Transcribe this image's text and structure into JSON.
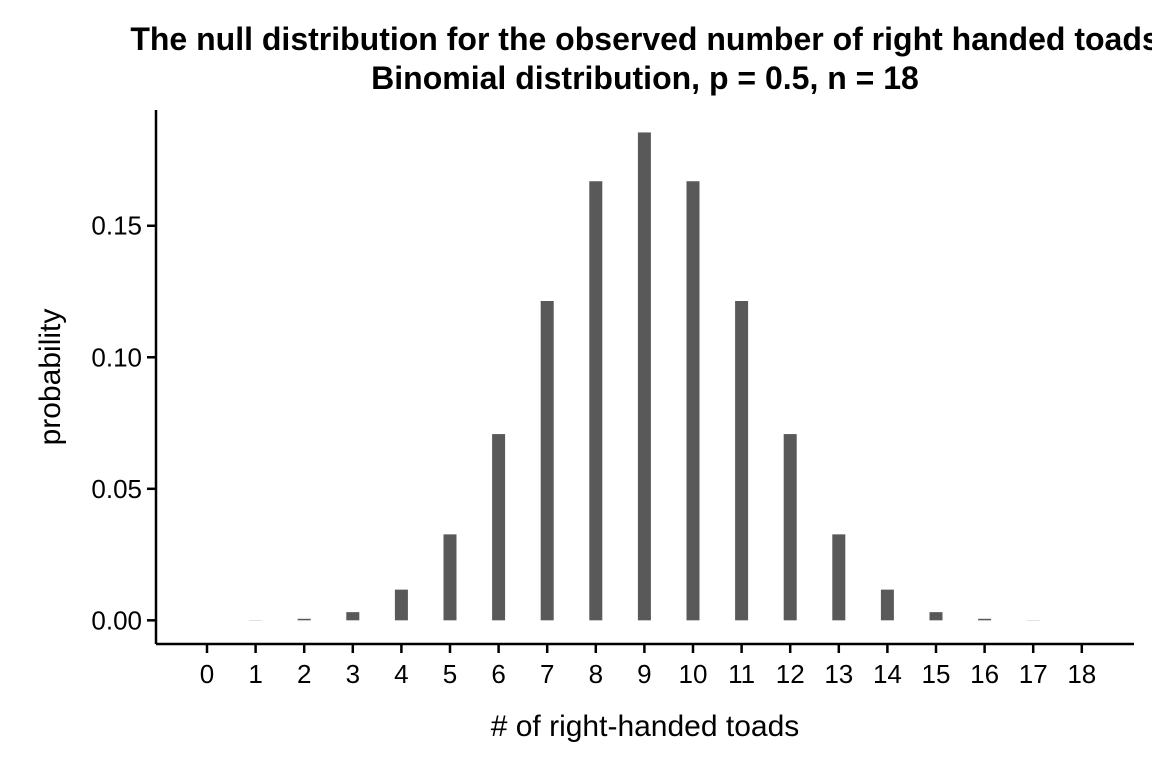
{
  "chart_data": {
    "type": "bar",
    "title": "The null distribution for the observed number of right handed toads",
    "subtitle": "Binomial distribution, p = 0.5, n = 18",
    "xlabel": "# of right-handed toads",
    "ylabel": "probability",
    "categories": [
      0,
      1,
      2,
      3,
      4,
      5,
      6,
      7,
      8,
      9,
      10,
      11,
      12,
      13,
      14,
      15,
      16,
      17,
      18
    ],
    "tick_labels": [
      "0",
      "1",
      "2",
      "3",
      "4",
      "5",
      "6",
      "7",
      "8",
      "9",
      "10",
      "11",
      "12",
      "13",
      "14",
      "15",
      "16",
      "17",
      "18"
    ],
    "values": [
      3.8e-06,
      6.87e-05,
      0.000584,
      0.00311,
      0.01167,
      0.03268,
      0.0708,
      0.12139,
      0.16692,
      0.18547,
      0.16692,
      0.12139,
      0.0708,
      0.03268,
      0.01167,
      0.00311,
      0.000584,
      6.87e-05,
      3.8e-06
    ],
    "ylim": [
      -0.009,
      0.194
    ],
    "yticks": [
      0.0,
      0.05,
      0.1,
      0.15
    ],
    "ytick_labels": [
      "0.00",
      "0.05",
      "0.10",
      "0.15"
    ],
    "bar_color": "#595959",
    "grid": false,
    "legend": "none"
  }
}
